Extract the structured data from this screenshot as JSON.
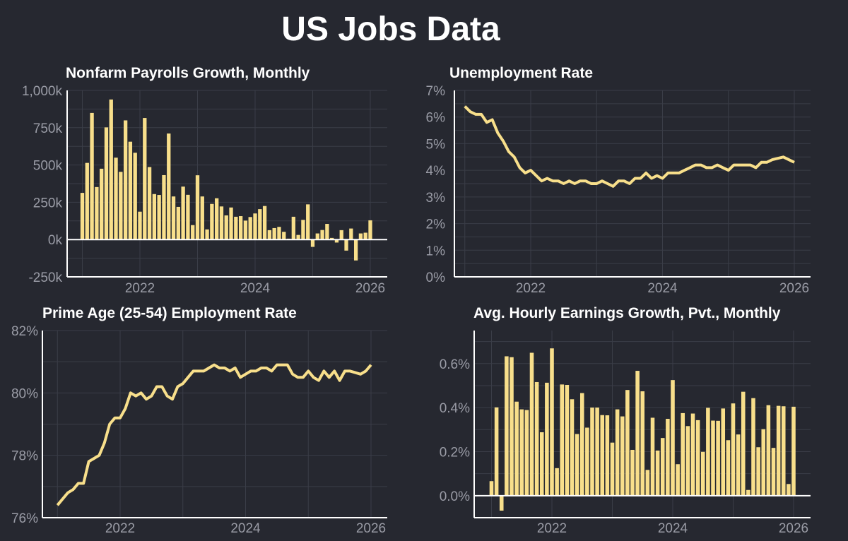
{
  "title": "US Jobs Data",
  "colors": {
    "background": "#262830",
    "series": "#f8df8b",
    "grid": "#3a3d47",
    "axis": "#ffffff",
    "tick_text": "#9a9ca6"
  },
  "chart_data": [
    {
      "type": "bar",
      "title": "Nonfarm Payrolls Growth, Monthly",
      "ylim": [
        -250000,
        1000000
      ],
      "yticks": [
        -250000,
        0,
        250000,
        500000,
        750000,
        1000000
      ],
      "ytick_labels": [
        "-250k",
        "0k",
        "250k",
        "500k",
        "750k",
        "1,000k"
      ],
      "xticks": [
        "2022",
        "2024",
        "2026"
      ],
      "grid": true,
      "x": [
        "2021-01",
        "2021-02",
        "2021-03",
        "2021-04",
        "2021-05",
        "2021-06",
        "2021-07",
        "2021-08",
        "2021-09",
        "2021-10",
        "2021-11",
        "2021-12",
        "2022-01",
        "2022-02",
        "2022-03",
        "2022-04",
        "2022-05",
        "2022-06",
        "2022-07",
        "2022-08",
        "2022-09",
        "2022-10",
        "2022-11",
        "2022-12",
        "2023-01",
        "2023-02",
        "2023-03",
        "2023-04",
        "2023-05",
        "2023-06",
        "2023-07",
        "2023-08",
        "2023-09",
        "2023-10",
        "2023-11",
        "2023-12",
        "2024-01",
        "2024-02",
        "2024-03",
        "2024-04",
        "2024-05",
        "2024-06",
        "2024-07",
        "2024-08",
        "2024-09",
        "2024-10",
        "2024-11",
        "2024-12",
        "2025-01",
        "2025-02",
        "2025-03",
        "2025-04",
        "2025-05",
        "2025-06",
        "2025-07",
        "2025-08",
        "2025-09",
        "2025-10",
        "2025-11",
        "2025-12",
        "2026-01"
      ],
      "values": [
        313000,
        514000,
        849000,
        352000,
        475000,
        752000,
        939000,
        549000,
        454000,
        799000,
        656000,
        582000,
        187000,
        815000,
        486000,
        305000,
        299000,
        432000,
        711000,
        289000,
        219000,
        355000,
        300000,
        97000,
        431000,
        289000,
        68000,
        239000,
        277000,
        222000,
        162000,
        215000,
        153000,
        157000,
        127000,
        151000,
        175000,
        204000,
        225000,
        63000,
        77000,
        85000,
        52000,
        6000,
        153000,
        31000,
        132000,
        236000,
        -49000,
        41000,
        64000,
        105000,
        11000,
        -20000,
        63000,
        -74000,
        74000,
        -140000,
        41000,
        46000,
        129000
      ]
    },
    {
      "type": "line",
      "title": "Unemployment Rate",
      "ylim": [
        0,
        7
      ],
      "yticks": [
        0,
        1,
        2,
        3,
        4,
        5,
        6,
        7
      ],
      "ytick_labels": [
        "0%",
        "1%",
        "2%",
        "3%",
        "4%",
        "5%",
        "6%",
        "7%"
      ],
      "xticks": [
        "2022",
        "2024",
        "2026"
      ],
      "grid": true,
      "x": [
        "2021-01",
        "2021-02",
        "2021-03",
        "2021-04",
        "2021-05",
        "2021-06",
        "2021-07",
        "2021-08",
        "2021-09",
        "2021-10",
        "2021-11",
        "2021-12",
        "2022-01",
        "2022-02",
        "2022-03",
        "2022-04",
        "2022-05",
        "2022-06",
        "2022-07",
        "2022-08",
        "2022-09",
        "2022-10",
        "2022-11",
        "2022-12",
        "2023-01",
        "2023-02",
        "2023-03",
        "2023-04",
        "2023-05",
        "2023-06",
        "2023-07",
        "2023-08",
        "2023-09",
        "2023-10",
        "2023-11",
        "2023-12",
        "2024-01",
        "2024-02",
        "2024-03",
        "2024-04",
        "2024-05",
        "2024-06",
        "2024-07",
        "2024-08",
        "2024-09",
        "2024-10",
        "2024-11",
        "2024-12",
        "2025-01",
        "2025-02",
        "2025-03",
        "2025-04",
        "2025-05",
        "2025-06",
        "2025-07",
        "2025-08",
        "2025-09",
        "2025-10",
        "2025-11",
        "2025-12",
        "2026-01"
      ],
      "values": [
        6.4,
        6.2,
        6.1,
        6.1,
        5.8,
        5.9,
        5.4,
        5.1,
        4.7,
        4.5,
        4.1,
        3.9,
        4.0,
        3.8,
        3.6,
        3.7,
        3.6,
        3.6,
        3.5,
        3.6,
        3.5,
        3.6,
        3.6,
        3.5,
        3.5,
        3.6,
        3.5,
        3.4,
        3.6,
        3.6,
        3.5,
        3.7,
        3.7,
        3.9,
        3.7,
        3.8,
        3.7,
        3.9,
        3.9,
        3.9,
        4.0,
        4.1,
        4.2,
        4.2,
        4.1,
        4.1,
        4.2,
        4.1,
        4.0,
        4.2,
        4.2,
        4.2,
        4.2,
        4.1,
        4.3,
        4.3,
        4.4,
        4.45,
        4.5,
        4.4,
        4.3
      ]
    },
    {
      "type": "line",
      "title": "Prime Age (25-54) Employment Rate",
      "ylim": [
        76,
        82
      ],
      "yticks": [
        76,
        78,
        80,
        82
      ],
      "ytick_labels": [
        "76%",
        "78%",
        "80%",
        "82%"
      ],
      "xticks": [
        "2022",
        "2024",
        "2026"
      ],
      "grid": true,
      "x": [
        "2021-01",
        "2021-02",
        "2021-03",
        "2021-04",
        "2021-05",
        "2021-06",
        "2021-07",
        "2021-08",
        "2021-09",
        "2021-10",
        "2021-11",
        "2021-12",
        "2022-01",
        "2022-02",
        "2022-03",
        "2022-04",
        "2022-05",
        "2022-06",
        "2022-07",
        "2022-08",
        "2022-09",
        "2022-10",
        "2022-11",
        "2022-12",
        "2023-01",
        "2023-02",
        "2023-03",
        "2023-04",
        "2023-05",
        "2023-06",
        "2023-07",
        "2023-08",
        "2023-09",
        "2023-10",
        "2023-11",
        "2023-12",
        "2024-01",
        "2024-02",
        "2024-03",
        "2024-04",
        "2024-05",
        "2024-06",
        "2024-07",
        "2024-08",
        "2024-09",
        "2024-10",
        "2024-11",
        "2024-12",
        "2025-01",
        "2025-02",
        "2025-03",
        "2025-04",
        "2025-05",
        "2025-06",
        "2025-07",
        "2025-08",
        "2025-09",
        "2025-10",
        "2025-11",
        "2025-12",
        "2026-01"
      ],
      "values": [
        76.4,
        76.6,
        76.8,
        76.9,
        77.1,
        77.1,
        77.8,
        77.9,
        78.0,
        78.4,
        79.0,
        79.2,
        79.2,
        79.5,
        80.0,
        79.9,
        80.0,
        79.8,
        79.9,
        80.2,
        80.2,
        79.9,
        79.8,
        80.2,
        80.3,
        80.5,
        80.7,
        80.7,
        80.7,
        80.8,
        80.9,
        80.8,
        80.8,
        80.7,
        80.8,
        80.5,
        80.6,
        80.7,
        80.7,
        80.8,
        80.8,
        80.7,
        80.9,
        80.9,
        80.9,
        80.6,
        80.5,
        80.5,
        80.7,
        80.5,
        80.4,
        80.7,
        80.5,
        80.7,
        80.4,
        80.7,
        80.7,
        80.65,
        80.6,
        80.7,
        80.9
      ]
    },
    {
      "type": "bar",
      "title": "Avg. Hourly Earnings Growth, Pvt., Monthly",
      "ylim": [
        -0.1,
        0.75
      ],
      "yticks": [
        0,
        0.2,
        0.4,
        0.6
      ],
      "ytick_labels": [
        "0.0%",
        "0.2%",
        "0.4%",
        "0.6%"
      ],
      "xticks": [
        "2022",
        "2024",
        "2026"
      ],
      "grid": true,
      "x": [
        "2021-01",
        "2021-02",
        "2021-03",
        "2021-04",
        "2021-05",
        "2021-06",
        "2021-07",
        "2021-08",
        "2021-09",
        "2021-10",
        "2021-11",
        "2021-12",
        "2022-01",
        "2022-02",
        "2022-03",
        "2022-04",
        "2022-05",
        "2022-06",
        "2022-07",
        "2022-08",
        "2022-09",
        "2022-10",
        "2022-11",
        "2022-12",
        "2023-01",
        "2023-02",
        "2023-03",
        "2023-04",
        "2023-05",
        "2023-06",
        "2023-07",
        "2023-08",
        "2023-09",
        "2023-10",
        "2023-11",
        "2023-12",
        "2024-01",
        "2024-02",
        "2024-03",
        "2024-04",
        "2024-05",
        "2024-06",
        "2024-07",
        "2024-08",
        "2024-09",
        "2024-10",
        "2024-11",
        "2024-12",
        "2025-01",
        "2025-02",
        "2025-03",
        "2025-04",
        "2025-05",
        "2025-06",
        "2025-07",
        "2025-08",
        "2025-09",
        "2025-10",
        "2025-11",
        "2025-12",
        "2026-01"
      ],
      "values": [
        0.066,
        0.401,
        -0.068,
        0.633,
        0.629,
        0.427,
        0.392,
        0.389,
        0.649,
        0.516,
        0.288,
        0.513,
        0.669,
        0.125,
        0.505,
        0.503,
        0.438,
        0.28,
        0.466,
        0.309,
        0.4,
        0.4,
        0.366,
        0.365,
        0.241,
        0.392,
        0.36,
        0.48,
        0.208,
        0.567,
        0.474,
        0.117,
        0.354,
        0.205,
        0.262,
        0.349,
        0.525,
        0.143,
        0.375,
        0.316,
        0.373,
        0.343,
        0.199,
        0.399,
        0.341,
        0.34,
        0.396,
        0.252,
        0.419,
        0.278,
        0.472,
        0.026,
        0.443,
        0.22,
        0.302,
        0.411,
        0.217,
        0.408,
        0.406,
        0.053,
        0.404
      ]
    }
  ]
}
